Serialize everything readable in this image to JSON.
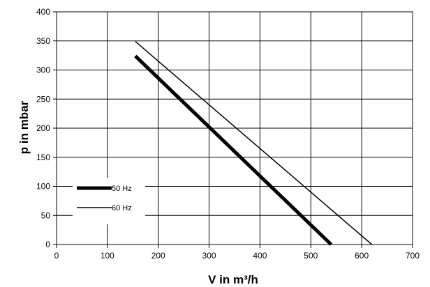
{
  "chart_data": {
    "type": "line",
    "xlabel": "V in m³/h",
    "ylabel": "p in mbar",
    "xlim": [
      0,
      700
    ],
    "ylim": [
      0,
      400
    ],
    "xticks": [
      0,
      100,
      200,
      300,
      400,
      500,
      600,
      700
    ],
    "yticks": [
      0,
      50,
      100,
      150,
      200,
      250,
      300,
      350,
      400
    ],
    "grid": true,
    "legend_position": "left",
    "series": [
      {
        "name": "50 Hz",
        "x": [
          155,
          540
        ],
        "y": [
          324,
          0
        ],
        "line_weight": "thick",
        "color": "#000000"
      },
      {
        "name": "60 Hz",
        "x": [
          155,
          620
        ],
        "y": [
          349,
          0
        ],
        "line_weight": "thin",
        "color": "#000000"
      }
    ]
  }
}
